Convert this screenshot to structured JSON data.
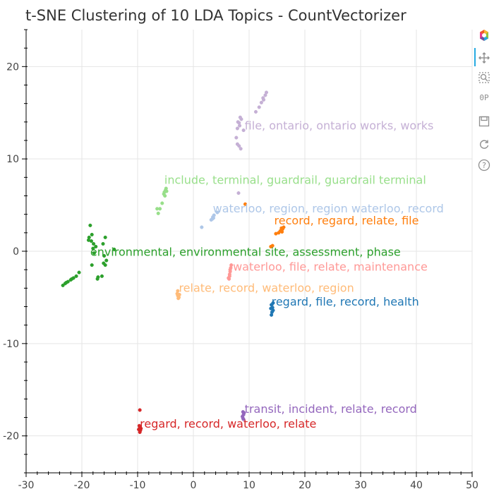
{
  "chart_data": {
    "type": "scatter",
    "title": "t-SNE Clustering of 10 LDA Topics - CountVectorizer",
    "xlabel": "",
    "ylabel": "",
    "xlim": [
      -30,
      50
    ],
    "ylim": [
      -24,
      24
    ],
    "x_ticks": [
      -30,
      -20,
      -10,
      0,
      10,
      20,
      30,
      40,
      50
    ],
    "y_ticks": [
      -20,
      -10,
      0,
      10,
      20
    ],
    "grid": true,
    "clusters": [
      {
        "label": "file, ontario, ontario works, works",
        "color": "#c5b0d5",
        "label_x": 9.2,
        "label_y": 13.2,
        "points": [
          [
            8.0,
            14.0
          ],
          [
            8.3,
            13.6
          ],
          [
            8.6,
            14.3
          ],
          [
            7.9,
            13.3
          ],
          [
            8.4,
            14.5
          ],
          [
            8.2,
            13.9
          ],
          [
            7.7,
            12.3
          ],
          [
            7.9,
            11.6
          ],
          [
            8.2,
            11.4
          ],
          [
            8.5,
            11.1
          ],
          [
            11.2,
            15.1
          ],
          [
            11.8,
            15.6
          ],
          [
            12.2,
            16.1
          ],
          [
            12.6,
            16.4
          ],
          [
            12.9,
            16.9
          ],
          [
            13.1,
            17.2
          ],
          [
            12.5,
            16.6
          ],
          [
            9.0,
            13.1
          ],
          [
            8.1,
            6.3
          ]
        ]
      },
      {
        "label": "include, terminal, guardrail, guardrail terminal",
        "color": "#98df8a",
        "label_x": -5.2,
        "label_y": 7.3,
        "points": [
          [
            -5.0,
            6.6
          ],
          [
            -5.3,
            6.2
          ],
          [
            -4.9,
            6.8
          ],
          [
            -5.1,
            6.0
          ],
          [
            -5.2,
            6.4
          ],
          [
            -4.8,
            6.5
          ],
          [
            -5.6,
            5.2
          ],
          [
            -6.0,
            4.6
          ],
          [
            -6.3,
            4.1
          ],
          [
            -6.5,
            4.6
          ]
        ]
      },
      {
        "label": "waterloo, region, region waterloo, record",
        "color": "#aec7e8",
        "label_x": 3.5,
        "label_y": 4.2,
        "points": [
          [
            3.4,
            3.5
          ],
          [
            3.7,
            3.9
          ],
          [
            3.5,
            3.7
          ],
          [
            3.2,
            3.4
          ],
          [
            4.3,
            4.2
          ],
          [
            1.5,
            2.6
          ],
          [
            3.6,
            3.6
          ]
        ]
      },
      {
        "label": "record, regard, relate, file",
        "color": "#ff7f0e",
        "label_x": 14.5,
        "label_y": 2.9,
        "points": [
          [
            16.0,
            2.4
          ],
          [
            15.6,
            2.2
          ],
          [
            16.2,
            2.6
          ],
          [
            15.3,
            2.0
          ],
          [
            15.8,
            2.5
          ],
          [
            14.8,
            1.9
          ],
          [
            15.9,
            2.1
          ],
          [
            14.2,
            0.6
          ],
          [
            13.9,
            0.5
          ],
          [
            9.3,
            5.1
          ]
        ]
      },
      {
        "label": "environmental, environmental site, assessment, phase",
        "color": "#2ca02c",
        "label_x": -18.5,
        "label_y": -0.5,
        "points": [
          [
            -18.5,
            2.8
          ],
          [
            -18.2,
            1.8
          ],
          [
            -18.7,
            1.5
          ],
          [
            -18.3,
            1.1
          ],
          [
            -18.8,
            1.2
          ],
          [
            -17.9,
            0.8
          ],
          [
            -18.0,
            0.3
          ],
          [
            -17.8,
            -0.2
          ],
          [
            -17.5,
            0.5
          ],
          [
            -15.8,
            1.5
          ],
          [
            -16.2,
            0.8
          ],
          [
            -16.0,
            -0.5
          ],
          [
            -15.6,
            -1.0
          ],
          [
            -15.8,
            -1.5
          ],
          [
            -16.1,
            -1.3
          ],
          [
            -16.4,
            -2.7
          ],
          [
            -17.2,
            -3.0
          ],
          [
            -17.1,
            -2.8
          ],
          [
            -18.2,
            -1.5
          ],
          [
            -14.2,
            0.2
          ],
          [
            -20.5,
            -2.3
          ],
          [
            -21.0,
            -2.7
          ],
          [
            -21.5,
            -2.9
          ],
          [
            -22.0,
            -3.1
          ],
          [
            -22.5,
            -3.3
          ],
          [
            -23.0,
            -3.5
          ],
          [
            -23.4,
            -3.7
          ],
          [
            -21.8,
            -3.0
          ],
          [
            -22.8,
            -3.4
          ]
        ]
      },
      {
        "label": "waterloo, file, relate, maintenance",
        "color": "#ff9896",
        "label_x": 7.1,
        "label_y": -2.1,
        "points": [
          [
            6.5,
            -2.7
          ],
          [
            6.6,
            -2.2
          ],
          [
            6.4,
            -3.0
          ],
          [
            6.7,
            -1.8
          ],
          [
            6.5,
            -2.5
          ],
          [
            6.3,
            -2.9
          ],
          [
            6.8,
            -1.5
          ],
          [
            6.6,
            -2.0
          ]
        ]
      },
      {
        "label": "relate, record, waterloo, region",
        "color": "#ffbb78",
        "label_x": -2.6,
        "label_y": -4.4,
        "points": [
          [
            -2.8,
            -4.8
          ],
          [
            -2.6,
            -5.0
          ],
          [
            -2.9,
            -4.6
          ],
          [
            -2.7,
            -5.1
          ],
          [
            -2.5,
            -4.7
          ],
          [
            -2.8,
            -4.3
          ]
        ]
      },
      {
        "label": "regard, file, record, health",
        "color": "#1f77b4",
        "label_x": 14.0,
        "label_y": -5.9,
        "points": [
          [
            14.2,
            -6.1
          ],
          [
            14.0,
            -5.8
          ],
          [
            14.3,
            -6.4
          ],
          [
            14.1,
            -6.6
          ],
          [
            13.9,
            -6.2
          ],
          [
            14.3,
            -5.6
          ],
          [
            14.0,
            -6.9
          ]
        ]
      },
      {
        "label": "transit, incident, relate, record",
        "color": "#9467bd",
        "label_x": 9.2,
        "label_y": -17.5,
        "points": [
          [
            9.0,
            -17.7
          ],
          [
            8.9,
            -18.1
          ],
          [
            9.1,
            -17.5
          ],
          [
            8.8,
            -17.9
          ],
          [
            9.0,
            -18.2
          ],
          [
            8.9,
            -17.4
          ]
        ]
      },
      {
        "label": "regard, record, waterloo, relate",
        "color": "#d62728",
        "label_x": -9.6,
        "label_y": -19.1,
        "points": [
          [
            -9.6,
            -19.1
          ],
          [
            -9.5,
            -19.4
          ],
          [
            -9.7,
            -18.9
          ],
          [
            -9.6,
            -19.6
          ],
          [
            -9.4,
            -19.2
          ],
          [
            -9.8,
            -19.3
          ],
          [
            -9.6,
            -17.2
          ]
        ]
      }
    ]
  },
  "toolbar": {
    "items": [
      {
        "name": "bokeh-logo-icon",
        "interactable": false
      },
      {
        "name": "pan-icon",
        "interactable": true
      },
      {
        "name": "box-zoom-icon",
        "interactable": true
      },
      {
        "name": "hover-icon",
        "interactable": true
      },
      {
        "name": "save-icon",
        "interactable": true
      },
      {
        "name": "reset-icon",
        "interactable": true
      },
      {
        "name": "help-icon",
        "interactable": true
      }
    ],
    "hover_glyph": "0P",
    "help_glyph": "?"
  }
}
